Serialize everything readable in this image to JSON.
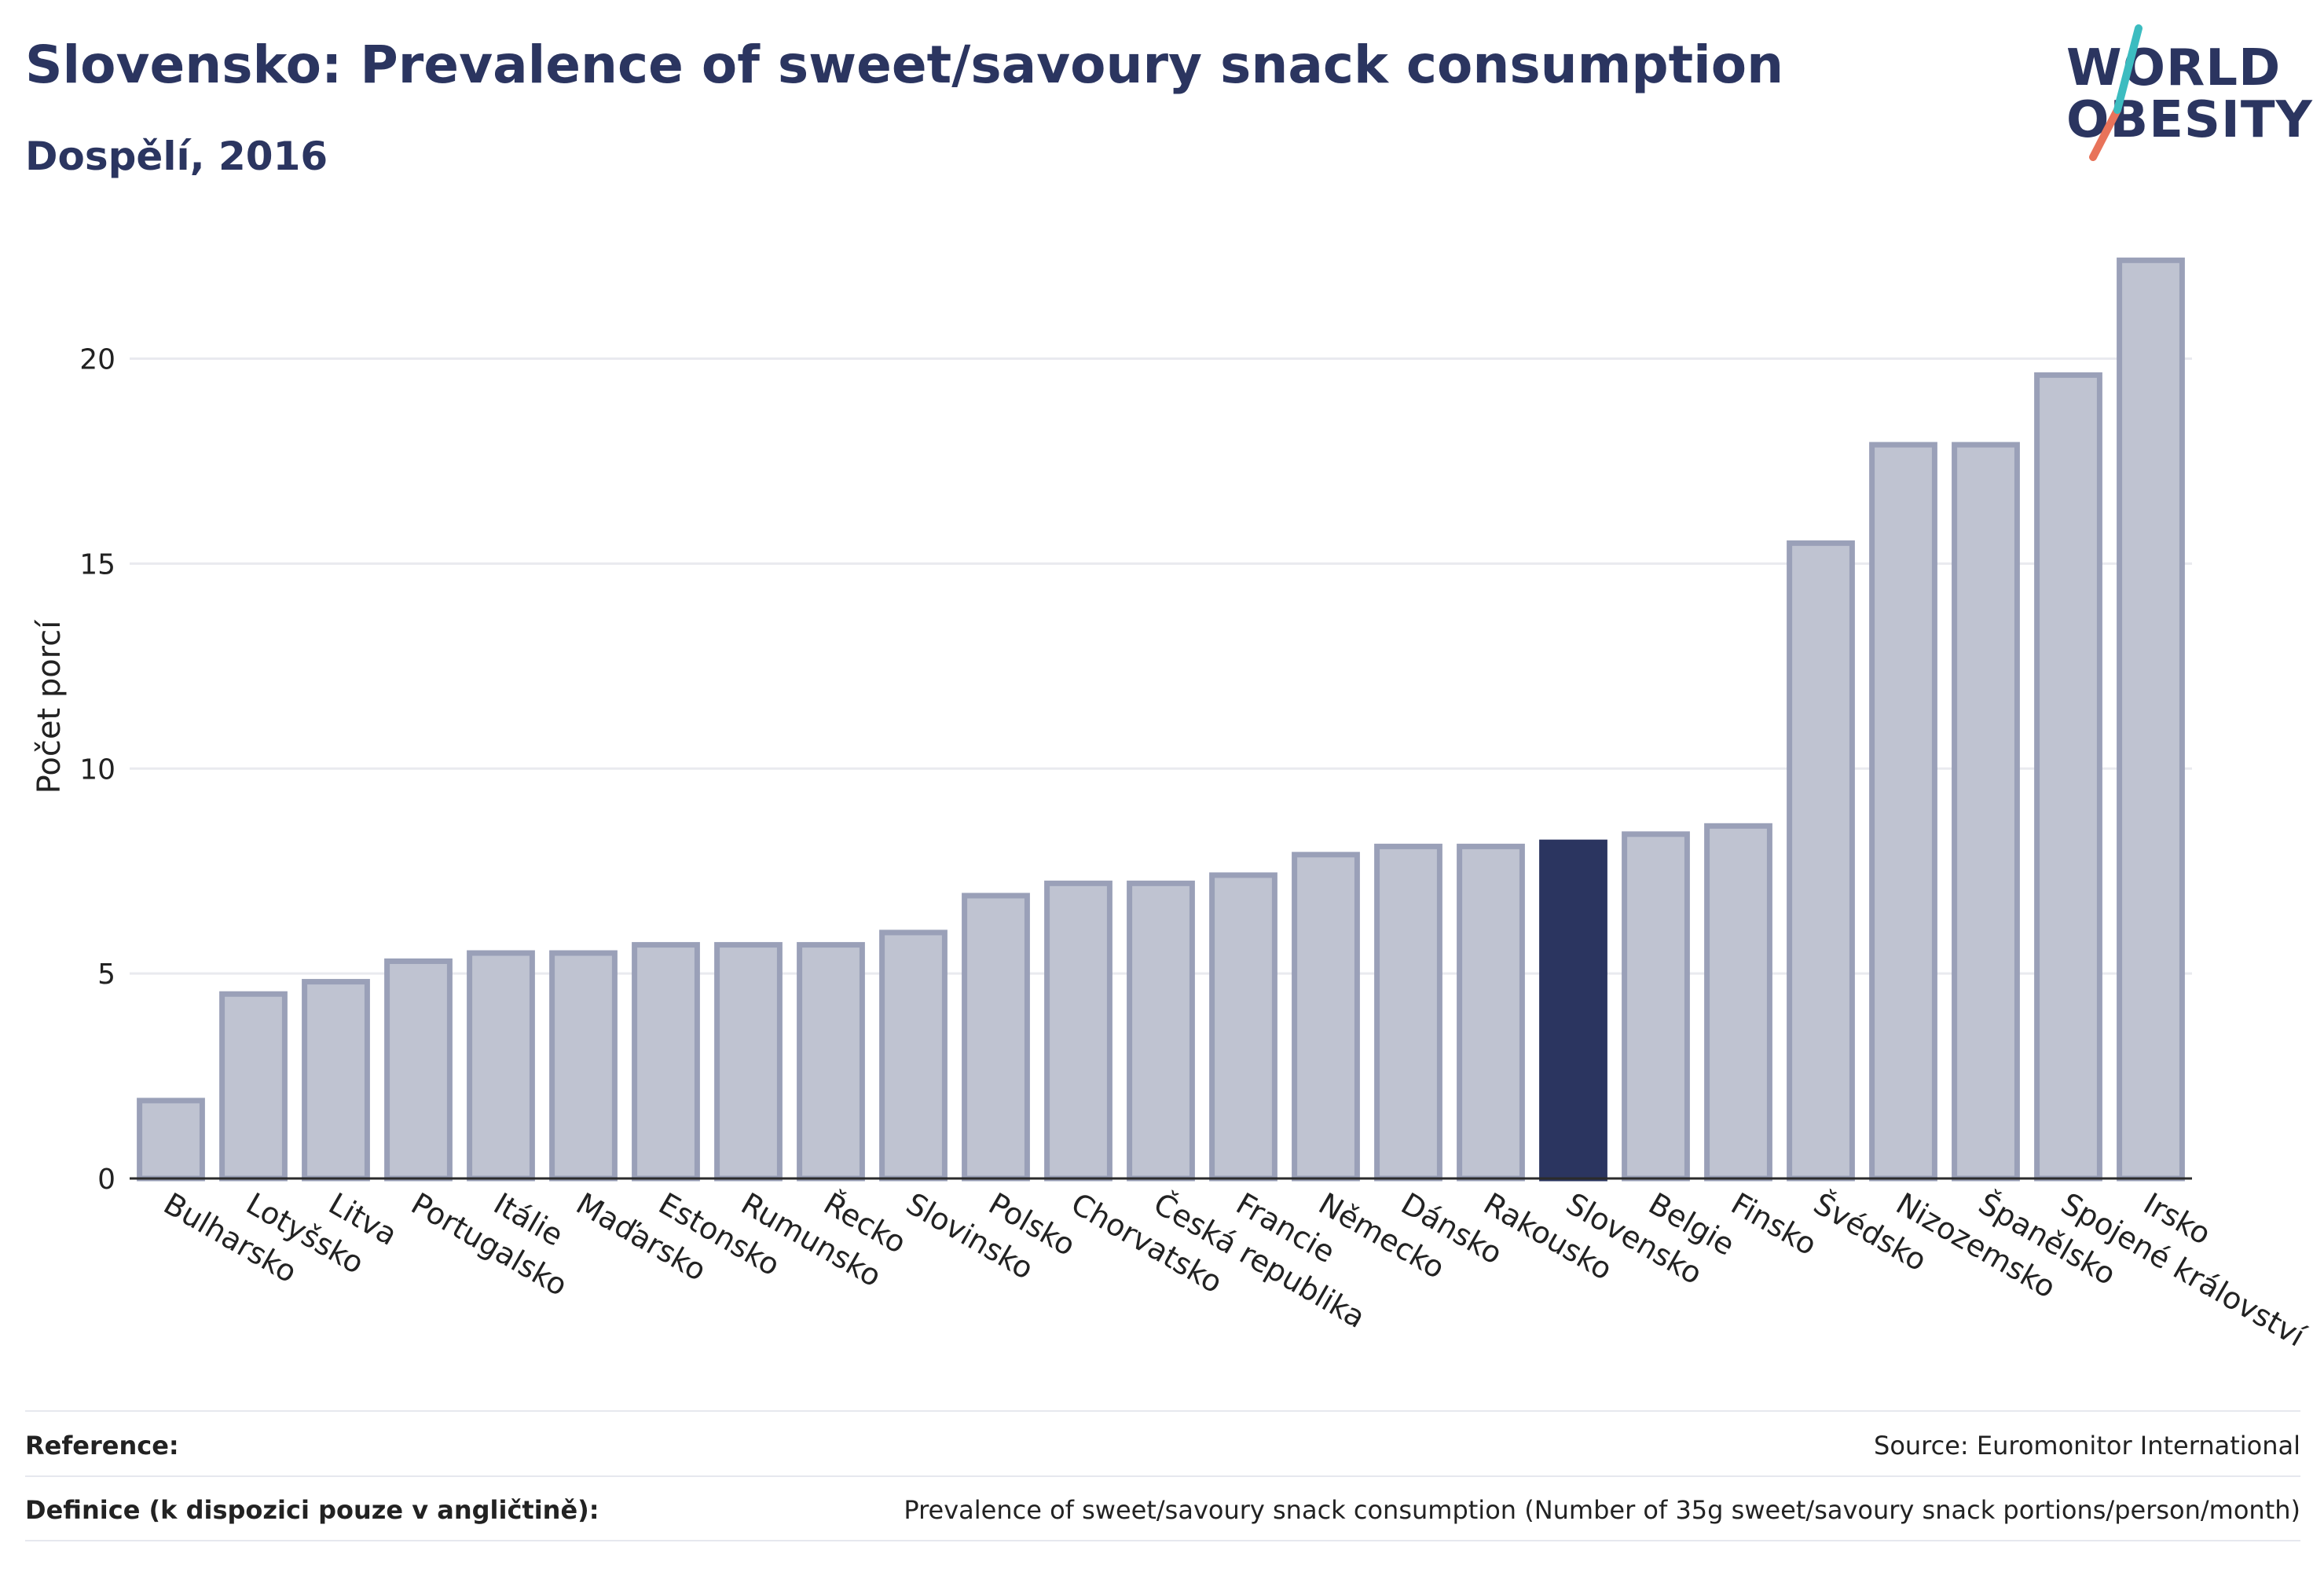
{
  "header": {
    "title": "Slovensko: Prevalence of sweet/savoury snack consumption",
    "subtitle": "Dospělí, 2016"
  },
  "logo": {
    "line1": "WORLD",
    "line2": "OBESITY"
  },
  "colors": {
    "bar_fill": "#bfc3d1",
    "bar_stroke": "#9aa0b8",
    "highlight": "#2b3560",
    "grid": "#e9eaef"
  },
  "chart_data": {
    "type": "bar",
    "title": "Slovensko: Prevalence of sweet/savoury snack consumption",
    "subtitle": "Dospělí, 2016",
    "xlabel": "",
    "ylabel": "Počet porcí",
    "ylim": [
      0,
      23
    ],
    "yticks": [
      0,
      5,
      10,
      15,
      20
    ],
    "grid": true,
    "highlight": "Slovensko",
    "categories": [
      "Bulharsko",
      "Lotyšsko",
      "Litva",
      "Portugalsko",
      "Itálie",
      "Maďarsko",
      "Estonsko",
      "Rumunsko",
      "Řecko",
      "Slovinsko",
      "Polsko",
      "Chorvatsko",
      "Česká republika",
      "Francie",
      "Německo",
      "Dánsko",
      "Rakousko",
      "Slovensko",
      "Belgie",
      "Finsko",
      "Švédsko",
      "Nizozemsko",
      "Španělsko",
      "Spojené království",
      "Irsko"
    ],
    "values": [
      1.9,
      4.5,
      4.8,
      5.3,
      5.5,
      5.5,
      5.7,
      5.7,
      5.7,
      6.0,
      6.9,
      7.2,
      7.2,
      7.4,
      7.9,
      8.1,
      8.1,
      8.2,
      8.4,
      8.6,
      15.5,
      17.9,
      17.9,
      19.6,
      22.4
    ]
  },
  "footer": {
    "reference_label": "Reference:",
    "reference_value": "Source: Euromonitor International",
    "definition_label": "Definice (k dispozici pouze v angličtině):",
    "definition_value": "Prevalence of sweet/savoury snack consumption (Number of 35g sweet/savoury snack portions/person/month)"
  }
}
